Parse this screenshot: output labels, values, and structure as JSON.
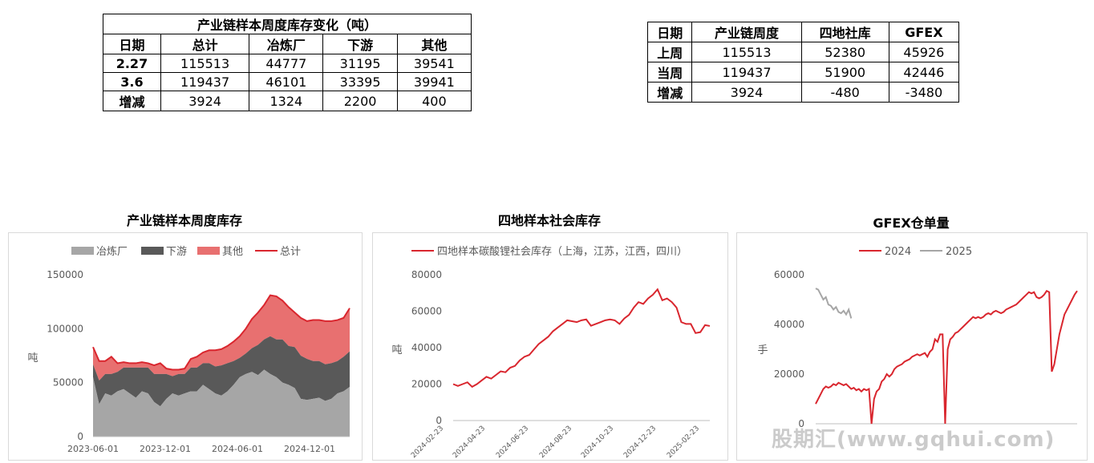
{
  "table1": {
    "title": "产业链样本周度库存变化（吨）",
    "headers": [
      "日期",
      "总计",
      "冶炼厂",
      "下游",
      "其他"
    ],
    "rows": [
      [
        "2.27",
        "115513",
        "44777",
        "31195",
        "39541"
      ],
      [
        "3.6",
        "119437",
        "46101",
        "33395",
        "39941"
      ],
      [
        "增减",
        "3924",
        "1324",
        "2200",
        "400"
      ]
    ]
  },
  "table2": {
    "headers": [
      "日期",
      "产业链周度",
      "四地社库",
      "GFEX"
    ],
    "rows": [
      [
        "上周",
        "115513",
        "52380",
        "45926"
      ],
      [
        "当周",
        "119437",
        "51900",
        "42446"
      ],
      [
        "增减",
        "3924",
        "-480",
        "-3480"
      ]
    ]
  },
  "watermark": "股期汇(www.gqhui.com)",
  "chart_data": [
    {
      "type": "area",
      "title": "产业链样本周度库存",
      "ylabel": "吨",
      "ylim": [
        0,
        150000
      ],
      "yticks": [
        "0",
        "50000",
        "100000",
        "150000"
      ],
      "xticks": [
        "2023-06-01",
        "2023-12-01",
        "2024-06-01",
        "2024-12-01"
      ],
      "legend": [
        "冶炼厂",
        "下游",
        "其他",
        "总计"
      ],
      "legend_position": "top",
      "colors": {
        "smelter": "#a6a6a6",
        "downstream": "#595959",
        "other": "#e87070",
        "total": "#d9262e"
      },
      "x": [
        "2023-06-01",
        "2023-06-15",
        "2023-07-01",
        "2023-07-15",
        "2023-08-01",
        "2023-08-15",
        "2023-09-01",
        "2023-09-15",
        "2023-10-01",
        "2023-10-15",
        "2023-11-01",
        "2023-11-15",
        "2023-12-01",
        "2023-12-15",
        "2024-01-01",
        "2024-01-15",
        "2024-02-01",
        "2024-02-15",
        "2024-03-01",
        "2024-03-15",
        "2024-04-01",
        "2024-04-15",
        "2024-05-01",
        "2024-05-15",
        "2024-06-01",
        "2024-06-15",
        "2024-07-01",
        "2024-07-15",
        "2024-08-01",
        "2024-08-15",
        "2024-09-01",
        "2024-09-15",
        "2024-10-01",
        "2024-10-15",
        "2024-11-01",
        "2024-11-15",
        "2024-12-01",
        "2024-12-15",
        "2025-01-01",
        "2025-01-15",
        "2025-02-01",
        "2025-02-15",
        "2025-03-06"
      ],
      "series": [
        {
          "name": "冶炼厂",
          "values": [
            55000,
            30000,
            40000,
            38000,
            42000,
            44000,
            40000,
            36000,
            42000,
            40000,
            32000,
            28000,
            35000,
            40000,
            38000,
            40000,
            42000,
            42000,
            48000,
            44000,
            40000,
            38000,
            42000,
            48000,
            55000,
            58000,
            60000,
            57000,
            62000,
            58000,
            55000,
            50000,
            48000,
            45000,
            35000,
            34000,
            35000,
            36000,
            33000,
            35000,
            40000,
            42000,
            46000
          ]
        },
        {
          "name": "下游",
          "values": [
            12000,
            22000,
            18000,
            20000,
            18000,
            20000,
            24000,
            28000,
            22000,
            24000,
            26000,
            30000,
            23000,
            16000,
            20000,
            18000,
            22000,
            22000,
            20000,
            24000,
            25000,
            28000,
            26000,
            22000,
            18000,
            19000,
            22000,
            28000,
            28000,
            35000,
            35000,
            40000,
            36000,
            38000,
            40000,
            38000,
            35000,
            34000,
            34000,
            33000,
            30000,
            32000,
            33000
          ]
        },
        {
          "name": "其他",
          "values": [
            16000,
            18000,
            12000,
            16000,
            8000,
            5000,
            4000,
            4000,
            5000,
            4000,
            8000,
            10000,
            5000,
            6000,
            4000,
            5000,
            8000,
            10000,
            10000,
            12000,
            15000,
            15000,
            16000,
            18000,
            20000,
            23000,
            27000,
            30000,
            32000,
            38000,
            40000,
            36000,
            36000,
            32000,
            35000,
            35000,
            38000,
            38000,
            40000,
            39000,
            38000,
            36000,
            40000
          ]
        },
        {
          "name": "总计",
          "values": [
            83000,
            70000,
            70000,
            74000,
            68000,
            69000,
            68000,
            68000,
            69000,
            68000,
            66000,
            68000,
            63000,
            62000,
            62000,
            63000,
            72000,
            74000,
            78000,
            80000,
            80000,
            81000,
            84000,
            88000,
            93000,
            100000,
            109000,
            115000,
            122000,
            131000,
            130000,
            126000,
            120000,
            115000,
            110000,
            107000,
            108000,
            108000,
            107000,
            107000,
            108000,
            110000,
            119000
          ]
        }
      ]
    },
    {
      "type": "line",
      "title": "四地样本社会库存",
      "ylabel": "吨",
      "ylim": [
        0,
        80000
      ],
      "yticks": [
        "0",
        "20000",
        "40000",
        "60000",
        "80000"
      ],
      "xticks": [
        "2024-02-23",
        "2024-04-23",
        "2024-06-23",
        "2024-08-23",
        "2024-10-23",
        "2024-12-23",
        "2025-02-23"
      ],
      "legend": [
        "四地样本碳酸锂社会库存（上海，江苏，江西，四川）"
      ],
      "legend_position": "top",
      "color": "#d9262e",
      "x": [
        "2024-02-23",
        "2024-03-01",
        "2024-03-08",
        "2024-03-15",
        "2024-03-22",
        "2024-03-29",
        "2024-04-05",
        "2024-04-12",
        "2024-04-19",
        "2024-04-26",
        "2024-05-03",
        "2024-05-10",
        "2024-05-17",
        "2024-05-24",
        "2024-05-31",
        "2024-06-07",
        "2024-06-14",
        "2024-06-21",
        "2024-06-28",
        "2024-07-05",
        "2024-07-12",
        "2024-07-19",
        "2024-07-26",
        "2024-08-02",
        "2024-08-09",
        "2024-08-16",
        "2024-08-23",
        "2024-08-30",
        "2024-09-06",
        "2024-09-13",
        "2024-09-20",
        "2024-09-27",
        "2024-10-04",
        "2024-10-11",
        "2024-10-18",
        "2024-10-25",
        "2024-11-01",
        "2024-11-08",
        "2024-11-15",
        "2024-11-22",
        "2024-11-29",
        "2024-12-06",
        "2024-12-13",
        "2024-12-20",
        "2024-12-27",
        "2025-01-03",
        "2025-01-10",
        "2025-01-17",
        "2025-01-24",
        "2025-01-31",
        "2025-02-07",
        "2025-02-14",
        "2025-02-21",
        "2025-02-28",
        "2025-03-06"
      ],
      "values": [
        20000,
        19000,
        20000,
        21000,
        18500,
        20000,
        22000,
        24000,
        23000,
        25000,
        27000,
        26500,
        29000,
        30000,
        33000,
        35000,
        36000,
        39000,
        42000,
        44000,
        46000,
        49000,
        51000,
        53000,
        55000,
        54500,
        54000,
        55000,
        55500,
        52000,
        53000,
        54000,
        55000,
        55500,
        55000,
        53000,
        56000,
        58000,
        62000,
        65000,
        64000,
        67000,
        69000,
        72000,
        66000,
        67000,
        65000,
        62000,
        54000,
        53000,
        53000,
        48000,
        48500,
        52380,
        51900
      ]
    },
    {
      "type": "line",
      "title": "GFEX仓单量",
      "ylabel": "手",
      "ylim": [
        0,
        60000
      ],
      "yticks": [
        "0",
        "20000",
        "40000",
        "60000"
      ],
      "legend": [
        "2024",
        "2025"
      ],
      "legend_position": "top",
      "colors": {
        "2024": "#d9262e",
        "2025": "#a6a6a6"
      },
      "series": [
        {
          "name": "2024",
          "values": [
            8000,
            10000,
            12000,
            14000,
            15000,
            14500,
            15000,
            16000,
            15500,
            16500,
            16000,
            15500,
            16000,
            15000,
            14000,
            14500,
            13500,
            14000,
            13000,
            14000,
            13500,
            14000,
            0,
            10000,
            13000,
            14000,
            17000,
            18000,
            20000,
            19000,
            20000,
            22000,
            23000,
            23500,
            24000,
            25000,
            25500,
            26000,
            27000,
            27500,
            28000,
            27500,
            28000,
            28500,
            27000,
            29000,
            30000,
            34000,
            33000,
            36000,
            36000,
            0,
            30000,
            34000,
            35000,
            36500,
            37000,
            38000,
            39000,
            40000,
            41000,
            42000,
            43000,
            42500,
            43000,
            42500,
            43000,
            44000,
            44500,
            44000,
            45000,
            45500,
            45000,
            44500,
            45000,
            46000,
            46500,
            47000,
            47500,
            48000,
            49000,
            50000,
            51000,
            52000,
            53000,
            52500,
            53000,
            51000,
            50500,
            51000,
            52000,
            53500,
            53000,
            21000,
            24000,
            30000,
            36000,
            40000,
            44000,
            46000,
            48000,
            50000,
            52000,
            53500
          ]
        },
        {
          "name": "2025",
          "values": [
            54500,
            54000,
            52000,
            50000,
            51000,
            48000,
            47500,
            46000,
            47000,
            45000,
            44500,
            45500,
            44000,
            46000,
            42446
          ]
        }
      ]
    }
  ]
}
